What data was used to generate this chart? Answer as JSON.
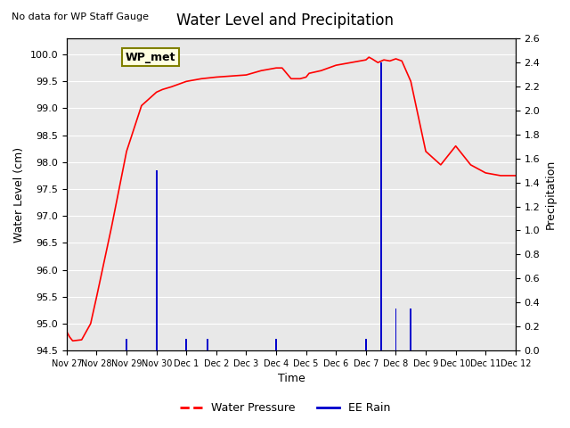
{
  "title": "Water Level and Precipitation",
  "subtitle": "No data for WP Staff Gauge",
  "ylabel_left": "Water Level (cm)",
  "ylabel_right": "Precipitation",
  "xlabel": "Time",
  "annotation": "WP_met",
  "xlim_days": [
    0,
    15
  ],
  "ylim_left": [
    94.5,
    100.3
  ],
  "ylim_right": [
    0.0,
    2.6
  ],
  "xtick_labels": [
    "Nov 27",
    "Nov 28",
    "Nov 29",
    "Nov 30",
    "Dec 1",
    "Dec 2",
    "Dec 3",
    "Dec 4",
    "Dec 5",
    "Dec 6",
    "Dec 7",
    "Dec 8",
    "Dec 9",
    "Dec 10",
    "Dec 11",
    "Dec 12"
  ],
  "yticks_left": [
    94.5,
    95.0,
    95.5,
    96.0,
    96.5,
    97.0,
    97.5,
    98.0,
    98.5,
    99.0,
    99.5,
    100.0
  ],
  "yticks_right": [
    0.0,
    0.2,
    0.4,
    0.6,
    0.8,
    1.0,
    1.2,
    1.4,
    1.6,
    1.8,
    2.0,
    2.2,
    2.4,
    2.6
  ],
  "water_color": "#ff0000",
  "precip_color": "#0000cc",
  "bg_color": "#e8e8e8",
  "plot_bg_color": "#e8e8e8",
  "legend_items": [
    "Water Pressure",
    "EE Rain"
  ],
  "water_x": [
    0,
    0.1,
    0.2,
    0.5,
    0.8,
    1.0,
    1.5,
    2.0,
    2.5,
    2.8,
    3.0,
    3.2,
    3.5,
    4.0,
    4.5,
    5.0,
    5.5,
    6.0,
    6.5,
    7.0,
    7.2,
    7.5,
    7.8,
    8.0,
    8.1,
    8.5,
    9.0,
    9.5,
    10.0,
    10.1,
    10.2,
    10.4,
    10.6,
    10.8,
    11.0,
    11.2,
    11.5,
    12.0,
    12.5,
    13.0,
    13.5,
    14.0,
    14.5,
    15.0
  ],
  "water_y": [
    94.85,
    94.75,
    94.68,
    94.7,
    95.0,
    95.5,
    96.8,
    98.2,
    99.05,
    99.2,
    99.3,
    99.35,
    99.4,
    99.5,
    99.55,
    99.58,
    99.6,
    99.62,
    99.7,
    99.75,
    99.75,
    99.55,
    99.55,
    99.58,
    99.65,
    99.7,
    99.8,
    99.85,
    99.9,
    99.95,
    99.92,
    99.85,
    99.9,
    99.88,
    99.92,
    99.88,
    99.5,
    98.2,
    97.95,
    98.3,
    97.95,
    97.8,
    97.75,
    97.75
  ],
  "precip_x": [
    2.0,
    3.0,
    3.05,
    4.0,
    4.1,
    4.7,
    4.75,
    7.0,
    7.05,
    10.0,
    10.05,
    10.5,
    10.55,
    11.0,
    11.05,
    11.5,
    11.55
  ],
  "precip_heights": [
    0.1,
    1.5,
    0.0,
    0.1,
    0.0,
    0.1,
    0.0,
    0.1,
    0.0,
    0.1,
    0.0,
    2.4,
    0.0,
    0.35,
    0.0,
    0.35,
    0.0
  ]
}
